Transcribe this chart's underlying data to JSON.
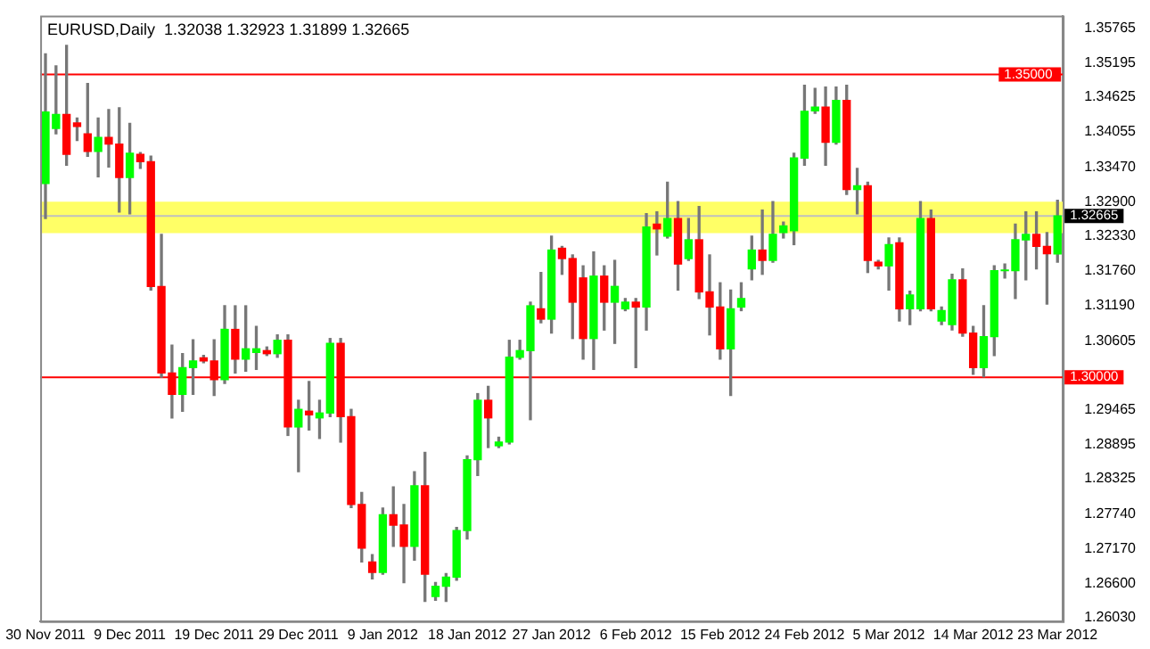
{
  "chart_data": {
    "type": "candlestick",
    "title": "EURUSD,Daily  1.32038 1.32923 1.31899 1.32665",
    "categories": [
      "30 Nov 2011",
      null,
      null,
      null,
      null,
      null,
      null,
      null,
      "9 Dec 2011",
      null,
      null,
      null,
      null,
      null,
      null,
      null,
      "19 Dec 2011",
      null,
      null,
      null,
      null,
      null,
      null,
      null,
      "29 Dec 2011",
      null,
      null,
      null,
      null,
      null,
      null,
      null,
      "9 Jan 2012",
      null,
      null,
      null,
      null,
      null,
      null,
      null,
      "18 Jan 2012",
      null,
      null,
      null,
      null,
      null,
      null,
      null,
      "27 Jan 2012",
      null,
      null,
      null,
      null,
      null,
      null,
      null,
      "6 Feb 2012",
      null,
      null,
      null,
      null,
      null,
      null,
      null,
      "15 Feb 2012",
      null,
      null,
      null,
      null,
      null,
      null,
      null,
      "24 Feb 2012",
      null,
      null,
      null,
      null,
      null,
      null,
      null,
      "5 Mar 2012",
      null,
      null,
      null,
      null,
      null,
      null,
      null,
      "14 Mar 2012",
      null,
      null,
      null,
      null,
      null,
      null,
      null,
      "23 Mar 2012"
    ],
    "ohlc": [
      [
        1.332,
        1.3534,
        1.3262,
        1.3438
      ],
      [
        1.3411,
        1.3514,
        1.3402,
        1.3434
      ],
      [
        1.3434,
        1.3548,
        1.335,
        1.3368
      ],
      [
        1.342,
        1.3428,
        1.3391,
        1.3414
      ],
      [
        1.3402,
        1.3485,
        1.3365,
        1.3373
      ],
      [
        1.3373,
        1.3428,
        1.3331,
        1.3396
      ],
      [
        1.3396,
        1.3442,
        1.3347,
        1.3385
      ],
      [
        1.3385,
        1.3445,
        1.3273,
        1.333
      ],
      [
        1.333,
        1.3419,
        1.327,
        1.337
      ],
      [
        1.3368,
        1.3371,
        1.3345,
        1.3356
      ],
      [
        1.3356,
        1.3365,
        1.3144,
        1.315
      ],
      [
        1.315,
        1.3236,
        1.3,
        1.3007
      ],
      [
        1.3007,
        1.3053,
        1.2933,
        1.2972
      ],
      [
        1.2972,
        1.3039,
        1.2944,
        1.3016
      ],
      [
        1.3016,
        1.3062,
        1.2972,
        1.3027
      ],
      [
        1.3032,
        1.3036,
        1.3024,
        1.3027
      ],
      [
        1.3027,
        1.3062,
        1.297,
        1.2996
      ],
      [
        1.2996,
        1.3118,
        1.299,
        1.3079
      ],
      [
        1.3079,
        1.3118,
        1.3007,
        1.303
      ],
      [
        1.303,
        1.3118,
        1.301,
        1.3047
      ],
      [
        1.3041,
        1.3084,
        1.3013,
        1.3047
      ],
      [
        1.3044,
        1.305,
        1.3036,
        1.3039
      ],
      [
        1.3039,
        1.307,
        1.3033,
        1.3061
      ],
      [
        1.3061,
        1.307,
        1.2904,
        1.2918
      ],
      [
        1.2918,
        1.2962,
        1.2844,
        1.2947
      ],
      [
        1.2944,
        1.2993,
        1.2913,
        1.2938
      ],
      [
        1.2933,
        1.2962,
        1.2899,
        1.2941
      ],
      [
        1.2941,
        1.3064,
        1.2935,
        1.3056
      ],
      [
        1.3056,
        1.3064,
        1.2893,
        1.2935
      ],
      [
        1.2935,
        1.2947,
        1.2785,
        1.279
      ],
      [
        1.279,
        1.281,
        1.2695,
        1.2718
      ],
      [
        1.2695,
        1.2707,
        1.2667,
        1.2678
      ],
      [
        1.2678,
        1.2784,
        1.2675,
        1.2773
      ],
      [
        1.2773,
        1.2819,
        1.2721,
        1.2756
      ],
      [
        1.2756,
        1.279,
        1.2661,
        1.2721
      ],
      [
        1.2721,
        1.2844,
        1.2698,
        1.2821
      ],
      [
        1.2821,
        1.2876,
        1.263,
        1.2675
      ],
      [
        1.2638,
        1.2661,
        1.2632,
        1.2655
      ],
      [
        1.2655,
        1.2676,
        1.263,
        1.267
      ],
      [
        1.267,
        1.2752,
        1.2665,
        1.2747
      ],
      [
        1.2747,
        1.287,
        1.2733,
        1.2864
      ],
      [
        1.2864,
        1.2973,
        1.2838,
        1.2962
      ],
      [
        1.2962,
        1.2985,
        1.2884,
        1.2933
      ],
      [
        1.2887,
        1.2901,
        1.2884,
        1.2893
      ],
      [
        1.2893,
        1.3061,
        1.289,
        1.3033
      ],
      [
        1.3033,
        1.3061,
        1.303,
        1.3044
      ],
      [
        1.3044,
        1.3124,
        1.293,
        1.3118
      ],
      [
        1.3113,
        1.3173,
        1.309,
        1.3096
      ],
      [
        1.3096,
        1.3233,
        1.3073,
        1.321
      ],
      [
        1.3213,
        1.3216,
        1.317,
        1.3196
      ],
      [
        1.3196,
        1.3202,
        1.3064,
        1.3124
      ],
      [
        1.3164,
        1.3184,
        1.303,
        1.3064
      ],
      [
        1.3064,
        1.3207,
        1.3013,
        1.3167
      ],
      [
        1.3167,
        1.3184,
        1.3078,
        1.3124
      ],
      [
        1.3124,
        1.3193,
        1.3056,
        1.315
      ],
      [
        1.3113,
        1.313,
        1.311,
        1.3124
      ],
      [
        1.3124,
        1.313,
        1.3016,
        1.3116
      ],
      [
        1.3116,
        1.327,
        1.3078,
        1.3248
      ],
      [
        1.3253,
        1.3273,
        1.3202,
        1.3245
      ],
      [
        1.3233,
        1.3322,
        1.323,
        1.3262
      ],
      [
        1.3262,
        1.329,
        1.3144,
        1.3187
      ],
      [
        1.3196,
        1.3262,
        1.3193,
        1.3227
      ],
      [
        1.3227,
        1.3282,
        1.313,
        1.3141
      ],
      [
        1.3141,
        1.3202,
        1.307,
        1.3116
      ],
      [
        1.3116,
        1.3156,
        1.303,
        1.3047
      ],
      [
        1.3047,
        1.3144,
        1.297,
        1.3113
      ],
      [
        1.3116,
        1.3156,
        1.311,
        1.313
      ],
      [
        1.3179,
        1.3233,
        1.3161,
        1.321
      ],
      [
        1.321,
        1.3276,
        1.317,
        1.3193
      ],
      [
        1.3193,
        1.329,
        1.319,
        1.3236
      ],
      [
        1.3239,
        1.3256,
        1.323,
        1.325
      ],
      [
        1.3242,
        1.337,
        1.3219,
        1.3362
      ],
      [
        1.3362,
        1.3482,
        1.335,
        1.3439
      ],
      [
        1.344,
        1.3477,
        1.3436,
        1.3446
      ],
      [
        1.3446,
        1.3479,
        1.335,
        1.3388
      ],
      [
        1.3388,
        1.3479,
        1.3385,
        1.3457
      ],
      [
        1.3457,
        1.3482,
        1.3302,
        1.331
      ],
      [
        1.331,
        1.3345,
        1.327,
        1.3316
      ],
      [
        1.3316,
        1.3322,
        1.3173,
        1.3193
      ],
      [
        1.319,
        1.3193,
        1.3179,
        1.3184
      ],
      [
        1.3184,
        1.323,
        1.3144,
        1.3219
      ],
      [
        1.3222,
        1.323,
        1.3093,
        1.3113
      ],
      [
        1.3113,
        1.3142,
        1.3087,
        1.3136
      ],
      [
        1.3113,
        1.329,
        1.311,
        1.3262
      ],
      [
        1.3262,
        1.3276,
        1.311,
        1.3113
      ],
      [
        1.3093,
        1.3116,
        1.3087,
        1.311
      ],
      [
        1.3087,
        1.317,
        1.3078,
        1.3161
      ],
      [
        1.3161,
        1.3179,
        1.3068,
        1.3073
      ],
      [
        1.3073,
        1.3084,
        1.3005,
        1.3016
      ],
      [
        1.3016,
        1.3118,
        1.3001,
        1.3067
      ],
      [
        1.3067,
        1.3184,
        1.3036,
        1.3176
      ],
      [
        1.3176,
        1.3187,
        1.3164,
        1.3177
      ],
      [
        1.3176,
        1.3253,
        1.313,
        1.3227
      ],
      [
        1.3227,
        1.3273,
        1.3161,
        1.3236
      ],
      [
        1.3236,
        1.3273,
        1.3179,
        1.3216
      ],
      [
        1.3216,
        1.3239,
        1.3121,
        1.3204
      ],
      [
        1.32038,
        1.32923,
        1.31899,
        1.32665
      ]
    ],
    "colors": [
      "#00ff00",
      "#00ff00",
      "#ff0000",
      "#ff0000",
      "#ff0000",
      "#00ff00",
      "#ff0000",
      "#ff0000",
      "#00ff00",
      "#ff0000",
      "#ff0000",
      "#ff0000",
      "#ff0000",
      "#00ff00",
      "#00ff00",
      "#ff0000",
      "#ff0000",
      "#00ff00",
      "#ff0000",
      "#00ff00",
      "#00ff00",
      "#ff0000",
      "#00ff00",
      "#ff0000",
      "#00ff00",
      "#ff0000",
      "#00ff00",
      "#00ff00",
      "#ff0000",
      "#ff0000",
      "#ff0000",
      "#ff0000",
      "#00ff00",
      "#ff0000",
      "#ff0000",
      "#00ff00",
      "#ff0000",
      "#00ff00",
      "#00ff00",
      "#00ff00",
      "#00ff00",
      "#00ff00",
      "#ff0000",
      "#00ff00",
      "#00ff00",
      "#00ff00",
      "#00ff00",
      "#ff0000",
      "#00ff00",
      "#ff0000",
      "#ff0000",
      "#ff0000",
      "#00ff00",
      "#ff0000",
      "#00ff00",
      "#00ff00",
      "#ff0000",
      "#00ff00",
      "#ff0000",
      "#00ff00",
      "#ff0000",
      "#00ff00",
      "#ff0000",
      "#ff0000",
      "#ff0000",
      "#00ff00",
      "#00ff00",
      "#00ff00",
      "#ff0000",
      "#00ff00",
      "#00ff00",
      "#00ff00",
      "#00ff00",
      "#00ff00",
      "#ff0000",
      "#00ff00",
      "#ff0000",
      "#00ff00",
      "#ff0000",
      "#ff0000",
      "#00ff00",
      "#ff0000",
      "#00ff00",
      "#00ff00",
      "#ff0000",
      "#00ff00",
      "#00ff00",
      "#ff0000",
      "#ff0000",
      "#00ff00",
      "#00ff00",
      "#00ff00",
      "#00ff00",
      "#00ff00",
      "#ff0000",
      "#ff0000",
      "#00ff00"
    ],
    "ylim": [
      1.25973,
      1.3597
    ],
    "yticks": [
      {
        "value": 1.2603,
        "label": "1.26030"
      },
      {
        "value": 1.266,
        "label": "1.26600"
      },
      {
        "value": 1.2717,
        "label": "1.27170"
      },
      {
        "value": 1.2774,
        "label": "1.27740"
      },
      {
        "value": 1.28325,
        "label": "1.28325"
      },
      {
        "value": 1.28895,
        "label": "1.28895"
      },
      {
        "value": 1.29465,
        "label": "1.29465"
      },
      {
        "value": 1.30605,
        "label": "1.30605"
      },
      {
        "value": 1.3119,
        "label": "1.31190"
      },
      {
        "value": 1.3176,
        "label": "1.31760"
      },
      {
        "value": 1.3233,
        "label": "1.32330"
      },
      {
        "value": 1.329,
        "label": "1.32900"
      },
      {
        "value": 1.3347,
        "label": "1.33470"
      },
      {
        "value": 1.34055,
        "label": "1.34055"
      },
      {
        "value": 1.34625,
        "label": "1.34625"
      },
      {
        "value": 1.35195,
        "label": "1.35195"
      },
      {
        "value": 1.35765,
        "label": "1.35765"
      }
    ],
    "ref_lines": [
      {
        "axis": "y",
        "value": 1.35,
        "label": "1.35000",
        "color": "#ff0000"
      },
      {
        "axis": "y",
        "value": 1.3,
        "label": "1.30000",
        "color": "#ff0000"
      },
      {
        "axis": "y",
        "value": 1.32665,
        "label": "1.32665",
        "color": "#c0c0c0"
      }
    ],
    "bands": [
      {
        "axis": "y",
        "from": 1.3238,
        "to": 1.329,
        "color": "#ffff66"
      }
    ],
    "legend": false,
    "grid": false
  }
}
